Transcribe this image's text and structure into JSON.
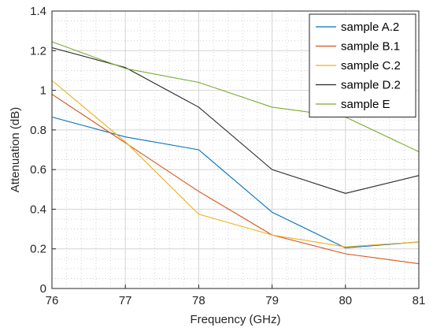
{
  "chart_data": {
    "type": "line",
    "title": "",
    "xlabel": "Frequency (GHz)",
    "ylabel": "Attenuation (dB)",
    "xlim": [
      76,
      81
    ],
    "ylim": [
      0,
      1.4
    ],
    "xticks": [
      76,
      77,
      78,
      79,
      80,
      81
    ],
    "yticks": [
      0,
      0.2,
      0.4,
      0.6,
      0.8,
      1,
      1.2,
      1.4
    ],
    "grid": true,
    "minor_grid": true,
    "legend_position": "top-right",
    "x": [
      76,
      77,
      78,
      79,
      80,
      81
    ],
    "series": [
      {
        "name": "sample A.2",
        "color": "#0072bd",
        "values": [
          0.865,
          0.765,
          0.7,
          0.385,
          0.205,
          0.235
        ]
      },
      {
        "name": "sample B.1",
        "color": "#d95319",
        "values": [
          0.98,
          0.735,
          0.49,
          0.27,
          0.175,
          0.125
        ]
      },
      {
        "name": "sample C.2",
        "color": "#edb120",
        "values": [
          1.05,
          0.74,
          0.375,
          0.27,
          0.21,
          0.235
        ]
      },
      {
        "name": "sample D.2",
        "color": "#262626",
        "values": [
          1.215,
          1.115,
          0.915,
          0.6,
          0.48,
          0.57
        ]
      },
      {
        "name": "sample E",
        "color": "#77ac30",
        "values": [
          1.245,
          1.11,
          1.04,
          0.915,
          0.865,
          0.69
        ]
      }
    ]
  }
}
